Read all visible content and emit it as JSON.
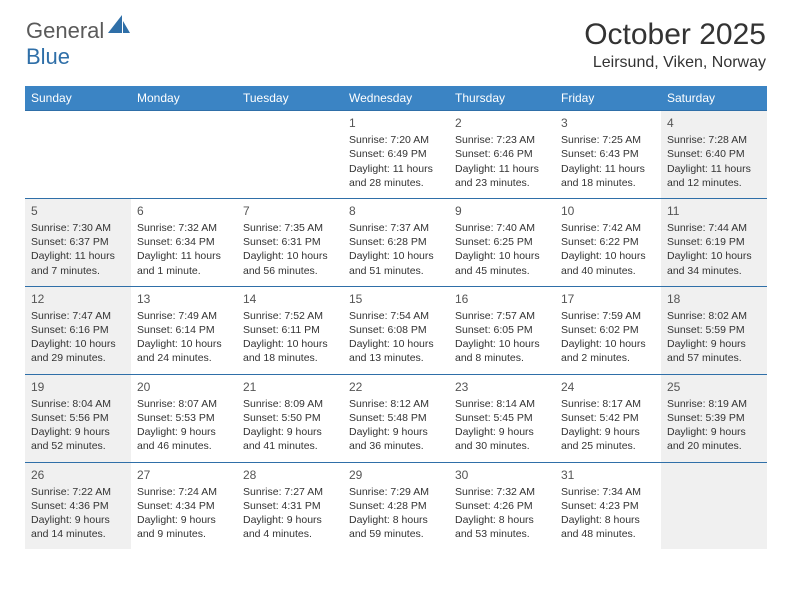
{
  "header": {
    "logo_general": "General",
    "logo_blue": "Blue",
    "month_title": "October 2025",
    "location": "Leirsund, Viken, Norway"
  },
  "colors": {
    "header_bg": "#3b84c4",
    "header_text": "#ffffff",
    "border": "#2f6fa8",
    "shaded_bg": "#f0f0f0",
    "text": "#333333",
    "logo_gray": "#5a5a5a",
    "logo_blue": "#2f6fa8"
  },
  "day_headers": [
    "Sunday",
    "Monday",
    "Tuesday",
    "Wednesday",
    "Thursday",
    "Friday",
    "Saturday"
  ],
  "weeks": [
    [
      {
        "day": "",
        "sunrise": "",
        "sunset": "",
        "daylight": "",
        "shaded": false
      },
      {
        "day": "",
        "sunrise": "",
        "sunset": "",
        "daylight": "",
        "shaded": false
      },
      {
        "day": "",
        "sunrise": "",
        "sunset": "",
        "daylight": "",
        "shaded": false
      },
      {
        "day": "1",
        "sunrise": "Sunrise: 7:20 AM",
        "sunset": "Sunset: 6:49 PM",
        "daylight": "Daylight: 11 hours and 28 minutes.",
        "shaded": false
      },
      {
        "day": "2",
        "sunrise": "Sunrise: 7:23 AM",
        "sunset": "Sunset: 6:46 PM",
        "daylight": "Daylight: 11 hours and 23 minutes.",
        "shaded": false
      },
      {
        "day": "3",
        "sunrise": "Sunrise: 7:25 AM",
        "sunset": "Sunset: 6:43 PM",
        "daylight": "Daylight: 11 hours and 18 minutes.",
        "shaded": false
      },
      {
        "day": "4",
        "sunrise": "Sunrise: 7:28 AM",
        "sunset": "Sunset: 6:40 PM",
        "daylight": "Daylight: 11 hours and 12 minutes.",
        "shaded": true
      }
    ],
    [
      {
        "day": "5",
        "sunrise": "Sunrise: 7:30 AM",
        "sunset": "Sunset: 6:37 PM",
        "daylight": "Daylight: 11 hours and 7 minutes.",
        "shaded": true
      },
      {
        "day": "6",
        "sunrise": "Sunrise: 7:32 AM",
        "sunset": "Sunset: 6:34 PM",
        "daylight": "Daylight: 11 hours and 1 minute.",
        "shaded": false
      },
      {
        "day": "7",
        "sunrise": "Sunrise: 7:35 AM",
        "sunset": "Sunset: 6:31 PM",
        "daylight": "Daylight: 10 hours and 56 minutes.",
        "shaded": false
      },
      {
        "day": "8",
        "sunrise": "Sunrise: 7:37 AM",
        "sunset": "Sunset: 6:28 PM",
        "daylight": "Daylight: 10 hours and 51 minutes.",
        "shaded": false
      },
      {
        "day": "9",
        "sunrise": "Sunrise: 7:40 AM",
        "sunset": "Sunset: 6:25 PM",
        "daylight": "Daylight: 10 hours and 45 minutes.",
        "shaded": false
      },
      {
        "day": "10",
        "sunrise": "Sunrise: 7:42 AM",
        "sunset": "Sunset: 6:22 PM",
        "daylight": "Daylight: 10 hours and 40 minutes.",
        "shaded": false
      },
      {
        "day": "11",
        "sunrise": "Sunrise: 7:44 AM",
        "sunset": "Sunset: 6:19 PM",
        "daylight": "Daylight: 10 hours and 34 minutes.",
        "shaded": true
      }
    ],
    [
      {
        "day": "12",
        "sunrise": "Sunrise: 7:47 AM",
        "sunset": "Sunset: 6:16 PM",
        "daylight": "Daylight: 10 hours and 29 minutes.",
        "shaded": true
      },
      {
        "day": "13",
        "sunrise": "Sunrise: 7:49 AM",
        "sunset": "Sunset: 6:14 PM",
        "daylight": "Daylight: 10 hours and 24 minutes.",
        "shaded": false
      },
      {
        "day": "14",
        "sunrise": "Sunrise: 7:52 AM",
        "sunset": "Sunset: 6:11 PM",
        "daylight": "Daylight: 10 hours and 18 minutes.",
        "shaded": false
      },
      {
        "day": "15",
        "sunrise": "Sunrise: 7:54 AM",
        "sunset": "Sunset: 6:08 PM",
        "daylight": "Daylight: 10 hours and 13 minutes.",
        "shaded": false
      },
      {
        "day": "16",
        "sunrise": "Sunrise: 7:57 AM",
        "sunset": "Sunset: 6:05 PM",
        "daylight": "Daylight: 10 hours and 8 minutes.",
        "shaded": false
      },
      {
        "day": "17",
        "sunrise": "Sunrise: 7:59 AM",
        "sunset": "Sunset: 6:02 PM",
        "daylight": "Daylight: 10 hours and 2 minutes.",
        "shaded": false
      },
      {
        "day": "18",
        "sunrise": "Sunrise: 8:02 AM",
        "sunset": "Sunset: 5:59 PM",
        "daylight": "Daylight: 9 hours and 57 minutes.",
        "shaded": true
      }
    ],
    [
      {
        "day": "19",
        "sunrise": "Sunrise: 8:04 AM",
        "sunset": "Sunset: 5:56 PM",
        "daylight": "Daylight: 9 hours and 52 minutes.",
        "shaded": true
      },
      {
        "day": "20",
        "sunrise": "Sunrise: 8:07 AM",
        "sunset": "Sunset: 5:53 PM",
        "daylight": "Daylight: 9 hours and 46 minutes.",
        "shaded": false
      },
      {
        "day": "21",
        "sunrise": "Sunrise: 8:09 AM",
        "sunset": "Sunset: 5:50 PM",
        "daylight": "Daylight: 9 hours and 41 minutes.",
        "shaded": false
      },
      {
        "day": "22",
        "sunrise": "Sunrise: 8:12 AM",
        "sunset": "Sunset: 5:48 PM",
        "daylight": "Daylight: 9 hours and 36 minutes.",
        "shaded": false
      },
      {
        "day": "23",
        "sunrise": "Sunrise: 8:14 AM",
        "sunset": "Sunset: 5:45 PM",
        "daylight": "Daylight: 9 hours and 30 minutes.",
        "shaded": false
      },
      {
        "day": "24",
        "sunrise": "Sunrise: 8:17 AM",
        "sunset": "Sunset: 5:42 PM",
        "daylight": "Daylight: 9 hours and 25 minutes.",
        "shaded": false
      },
      {
        "day": "25",
        "sunrise": "Sunrise: 8:19 AM",
        "sunset": "Sunset: 5:39 PM",
        "daylight": "Daylight: 9 hours and 20 minutes.",
        "shaded": true
      }
    ],
    [
      {
        "day": "26",
        "sunrise": "Sunrise: 7:22 AM",
        "sunset": "Sunset: 4:36 PM",
        "daylight": "Daylight: 9 hours and 14 minutes.",
        "shaded": true
      },
      {
        "day": "27",
        "sunrise": "Sunrise: 7:24 AM",
        "sunset": "Sunset: 4:34 PM",
        "daylight": "Daylight: 9 hours and 9 minutes.",
        "shaded": false
      },
      {
        "day": "28",
        "sunrise": "Sunrise: 7:27 AM",
        "sunset": "Sunset: 4:31 PM",
        "daylight": "Daylight: 9 hours and 4 minutes.",
        "shaded": false
      },
      {
        "day": "29",
        "sunrise": "Sunrise: 7:29 AM",
        "sunset": "Sunset: 4:28 PM",
        "daylight": "Daylight: 8 hours and 59 minutes.",
        "shaded": false
      },
      {
        "day": "30",
        "sunrise": "Sunrise: 7:32 AM",
        "sunset": "Sunset: 4:26 PM",
        "daylight": "Daylight: 8 hours and 53 minutes.",
        "shaded": false
      },
      {
        "day": "31",
        "sunrise": "Sunrise: 7:34 AM",
        "sunset": "Sunset: 4:23 PM",
        "daylight": "Daylight: 8 hours and 48 minutes.",
        "shaded": false
      },
      {
        "day": "",
        "sunrise": "",
        "sunset": "",
        "daylight": "",
        "shaded": true
      }
    ]
  ]
}
